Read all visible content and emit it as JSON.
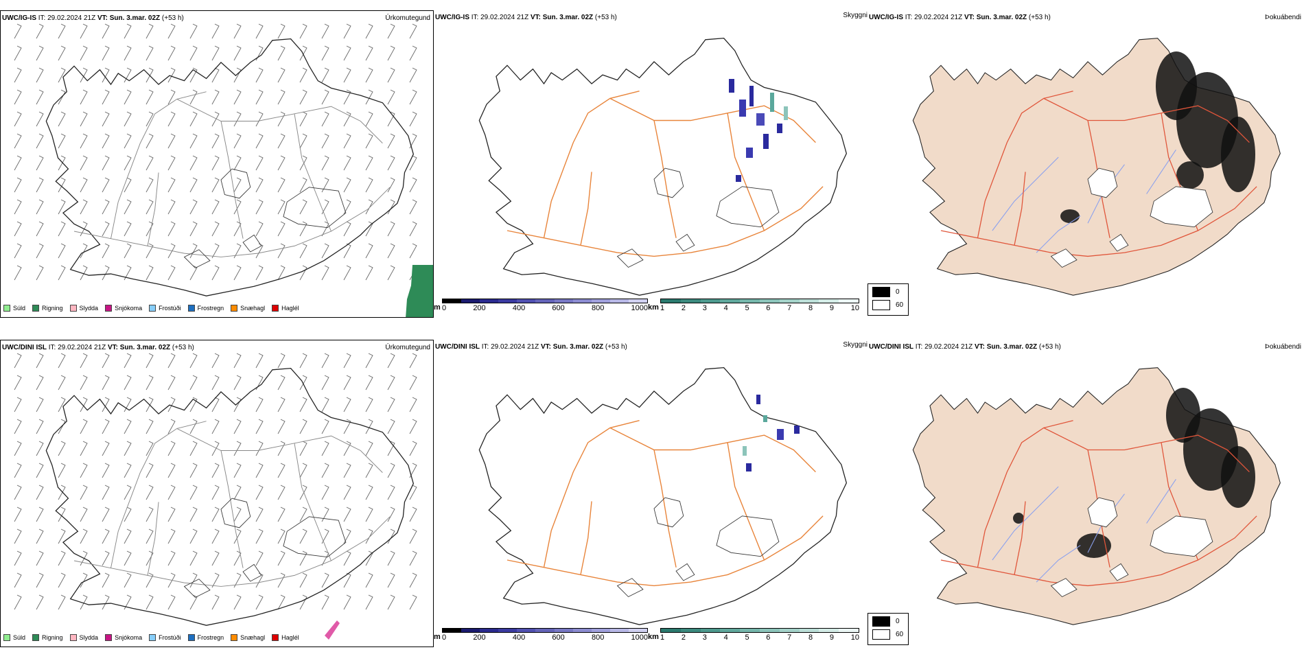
{
  "rows": [
    {
      "model": "UWC/IG-IS",
      "it_label": "IT:",
      "it_value": "29.02.2024 21Z",
      "vt_label": "VT:",
      "vt_value": "Sun. 3.mar. 02Z",
      "lead": "(+53 h)"
    },
    {
      "model": "UWC/DINI ISL",
      "it_label": "IT:",
      "it_value": "29.02.2024 21Z",
      "vt_label": "VT:",
      "vt_value": "Sun. 3.mar. 02Z",
      "lead": "(+53 h)"
    }
  ],
  "panel_titles": {
    "precip_type": "Úrkomutegund",
    "visibility": "Skyggni",
    "fog_index": "Þokuábendi"
  },
  "precip_legend": [
    {
      "label": "Súld",
      "color": "#90ee90"
    },
    {
      "label": "Rigning",
      "color": "#2e8b57"
    },
    {
      "label": "Slydda",
      "color": "#ffb6c1"
    },
    {
      "label": "Snjókoma",
      "color": "#c71585"
    },
    {
      "label": "Frostúði",
      "color": "#87cefa"
    },
    {
      "label": "Frostregn",
      "color": "#1e6fc0"
    },
    {
      "label": "Snæhagl",
      "color": "#ff8c00"
    },
    {
      "label": "Haglél",
      "color": "#dd0000"
    }
  ],
  "elevation_bar": {
    "unit": "m",
    "ticks": [
      "0",
      "200",
      "400",
      "600",
      "800",
      "1000"
    ],
    "colors": [
      "#000000",
      "#1a1a6e",
      "#2a2a8e",
      "#3a3aa0",
      "#5050b0",
      "#6464b8",
      "#7878c4",
      "#8c8cd0",
      "#a0a0dc",
      "#b8b8e6",
      "#d0d0f0"
    ]
  },
  "visibility_bar": {
    "unit": "km",
    "ticks": [
      "1",
      "2",
      "3",
      "4",
      "5",
      "6",
      "7",
      "8",
      "9",
      "10"
    ],
    "colors": [
      "#2b7a6e",
      "#3c8a7e",
      "#4d998d",
      "#60a89c",
      "#75b6ab",
      "#8cc4ba",
      "#a4d2c9",
      "#bcdfd8",
      "#d4ece7",
      "#ecf7f5"
    ]
  },
  "fog_legend": [
    {
      "label": "0",
      "color": "#000000"
    },
    {
      "label": "60",
      "color": "#ffffff"
    }
  ],
  "colors": {
    "road": "#e8843a",
    "land_fog": "#f1dbc9",
    "river": "#8aa0ee",
    "rain": "#2e8b57",
    "snow": "#c71585",
    "vis_blue": "#2a2a9e"
  }
}
